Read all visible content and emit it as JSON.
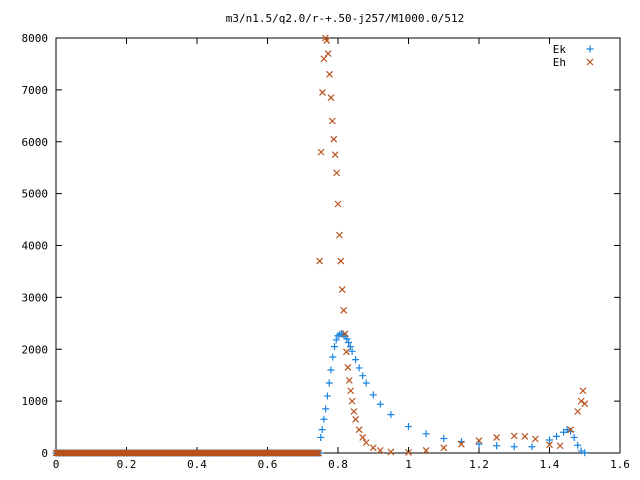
{
  "chart_data": {
    "type": "scatter",
    "title": "m3/n1.5/q2.0/r-+.50-j257/M1000.0/512",
    "xlabel": "",
    "ylabel": "",
    "xlim": [
      0,
      1.6
    ],
    "ylim": [
      0,
      8000
    ],
    "x_ticks": [
      "0",
      "0.2",
      "0.4",
      "0.6",
      "0.8",
      "1",
      "1.2",
      "1.4",
      "1.6"
    ],
    "y_ticks": [
      "0",
      "1000",
      "2000",
      "3000",
      "4000",
      "5000",
      "6000",
      "7000",
      "8000"
    ],
    "legend_position": "top-right",
    "series": [
      {
        "name": "Ek",
        "marker": "plus",
        "color": "#1a84e0",
        "x": [
          0.751,
          0.755,
          0.76,
          0.765,
          0.77,
          0.775,
          0.78,
          0.785,
          0.79,
          0.795,
          0.8,
          0.805,
          0.81,
          0.815,
          0.82,
          0.825,
          0.83,
          0.835,
          0.84,
          0.85,
          0.86,
          0.87,
          0.88,
          0.9,
          0.92,
          0.95,
          1.0,
          1.05,
          1.1,
          1.15,
          1.2,
          1.25,
          1.3,
          1.35,
          1.4,
          1.42,
          1.44,
          1.45,
          1.46,
          1.47,
          1.48,
          1.49,
          1.5
        ],
        "y": [
          300,
          450,
          650,
          850,
          1100,
          1350,
          1600,
          1850,
          2050,
          2180,
          2260,
          2290,
          2300,
          2290,
          2250,
          2200,
          2130,
          2050,
          1960,
          1800,
          1640,
          1490,
          1350,
          1120,
          940,
          740,
          510,
          370,
          280,
          220,
          170,
          140,
          120,
          120,
          250,
          320,
          400,
          450,
          420,
          300,
          150,
          40,
          5
        ]
      },
      {
        "name": "Eh",
        "marker": "cross",
        "color": "#b8511c",
        "x": [
          0.748,
          0.752,
          0.756,
          0.76,
          0.764,
          0.768,
          0.772,
          0.776,
          0.78,
          0.784,
          0.788,
          0.792,
          0.796,
          0.8,
          0.804,
          0.808,
          0.812,
          0.816,
          0.82,
          0.824,
          0.828,
          0.832,
          0.836,
          0.84,
          0.845,
          0.85,
          0.86,
          0.87,
          0.88,
          0.9,
          0.92,
          0.95,
          1.0,
          1.05,
          1.1,
          1.15,
          1.2,
          1.25,
          1.3,
          1.33,
          1.36,
          1.4,
          1.43,
          1.46,
          1.48,
          1.49,
          1.495,
          1.5
        ],
        "y": [
          3700,
          5800,
          6950,
          7600,
          8000,
          7950,
          7700,
          7300,
          6850,
          6400,
          6050,
          5750,
          5400,
          4800,
          4200,
          3700,
          3150,
          2750,
          2300,
          1950,
          1650,
          1400,
          1200,
          1000,
          800,
          650,
          450,
          300,
          200,
          100,
          50,
          20,
          10,
          50,
          100,
          170,
          240,
          300,
          330,
          320,
          270,
          160,
          140,
          450,
          800,
          1000,
          1200,
          950
        ]
      }
    ]
  },
  "legend": [
    {
      "label": "Ek",
      "series": "Ek"
    },
    {
      "label": "Eh",
      "series": "Eh"
    }
  ]
}
